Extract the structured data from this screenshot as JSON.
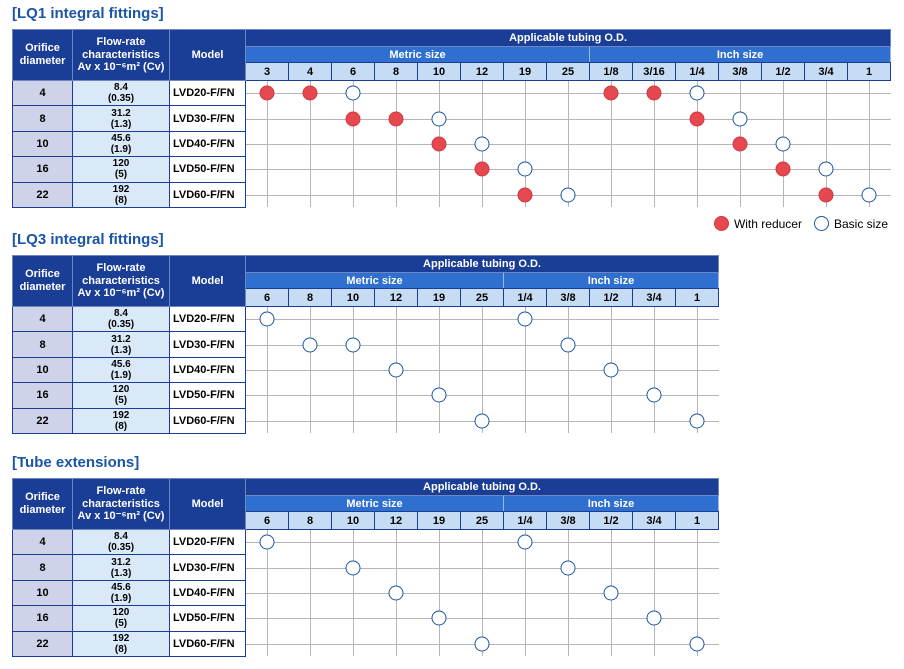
{
  "headers": {
    "orifice": [
      "Orifice",
      "diameter"
    ],
    "flow": [
      "Flow-rate",
      "characteristics",
      "Av x 10⁻⁶m² (Cv)"
    ],
    "model": "Model",
    "applicable": "Applicable tubing O.D.",
    "metric": "Metric size",
    "inch": "Inch size"
  },
  "legend": {
    "reducer": "With reducer",
    "basic": "Basic size"
  },
  "rows": [
    {
      "orifice": "4",
      "flow": "8.4",
      "cv": "(0.35)",
      "model": "LVD20-F/FN"
    },
    {
      "orifice": "8",
      "flow": "31.2",
      "cv": "(1.3)",
      "model": "LVD30-F/FN"
    },
    {
      "orifice": "10",
      "flow": "45.6",
      "cv": "(1.9)",
      "model": "LVD40-F/FN"
    },
    {
      "orifice": "16",
      "flow": "120",
      "cv": "(5)",
      "model": "LVD50-F/FN"
    },
    {
      "orifice": "22",
      "flow": "192",
      "cv": "(8)",
      "model": "LVD60-F/FN"
    }
  ],
  "tables": [
    {
      "title": "[LQ1 integral fittings]",
      "metric_sizes": [
        "3",
        "4",
        "6",
        "8",
        "10",
        "12",
        "19",
        "25"
      ],
      "inch_sizes": [
        "1/8",
        "3/16",
        "1/4",
        "3/8",
        "1/2",
        "3/4",
        "1"
      ],
      "marks": [
        [
          "R",
          "R",
          "O",
          "",
          "",
          "",
          "",
          "",
          "R",
          "R",
          "O",
          "",
          "",
          "",
          ""
        ],
        [
          "",
          "",
          "R",
          "R",
          "O",
          "",
          "",
          "",
          "",
          "",
          "R",
          "O",
          "",
          "",
          ""
        ],
        [
          "",
          "",
          "",
          "",
          "R",
          "O",
          "",
          "",
          "",
          "",
          "",
          "R",
          "O",
          "",
          ""
        ],
        [
          "",
          "",
          "",
          "",
          "",
          "R",
          "O",
          "",
          "",
          "",
          "",
          "",
          "R",
          "O",
          ""
        ],
        [
          "",
          "",
          "",
          "",
          "",
          "",
          "R",
          "O",
          "",
          "",
          "",
          "",
          "",
          "R",
          "O"
        ]
      ]
    },
    {
      "title": "[LQ3 integral fittings]",
      "metric_sizes": [
        "6",
        "8",
        "10",
        "12",
        "19",
        "25"
      ],
      "inch_sizes": [
        "1/4",
        "3/8",
        "1/2",
        "3/4",
        "1"
      ],
      "marks": [
        [
          "O",
          "",
          "",
          "",
          "",
          "",
          "O",
          "",
          "",
          "",
          ""
        ],
        [
          "",
          "O",
          "O",
          "",
          "",
          "",
          "",
          "O",
          "",
          "",
          ""
        ],
        [
          "",
          "",
          "",
          "O",
          "",
          "",
          "",
          "",
          "O",
          "",
          ""
        ],
        [
          "",
          "",
          "",
          "",
          "O",
          "",
          "",
          "",
          "",
          "O",
          ""
        ],
        [
          "",
          "",
          "",
          "",
          "",
          "O",
          "",
          "",
          "",
          "",
          "O"
        ]
      ]
    },
    {
      "title": "[Tube extensions]",
      "metric_sizes": [
        "6",
        "8",
        "10",
        "12",
        "19",
        "25"
      ],
      "inch_sizes": [
        "1/4",
        "3/8",
        "1/2",
        "3/4",
        "1"
      ],
      "marks": [
        [
          "O",
          "",
          "",
          "",
          "",
          "",
          "O",
          "",
          "",
          "",
          ""
        ],
        [
          "",
          "",
          "O",
          "",
          "",
          "",
          "",
          "O",
          "",
          "",
          ""
        ],
        [
          "",
          "",
          "",
          "O",
          "",
          "",
          "",
          "",
          "O",
          "",
          ""
        ],
        [
          "",
          "",
          "",
          "",
          "O",
          "",
          "",
          "",
          "",
          "O",
          ""
        ],
        [
          "",
          "",
          "",
          "",
          "",
          "O",
          "",
          "",
          "",
          "",
          "O"
        ]
      ]
    }
  ]
}
